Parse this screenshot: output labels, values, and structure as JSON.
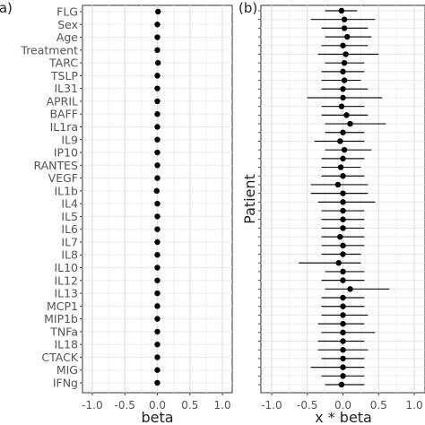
{
  "chart_data": [
    {
      "panel_label": "(a)",
      "type": "scatter",
      "title": "",
      "xlabel": "beta",
      "ylabel": "",
      "xlim": [
        -1.15,
        1.15
      ],
      "xticks": [
        "-1.0",
        "-0.5",
        "0.0",
        "0.5",
        "1.0"
      ],
      "grid": true,
      "categories": [
        "FLG",
        "Sex",
        "Age",
        "Treatment",
        "TARC",
        "TSLP",
        "IL31",
        "APRIL",
        "BAFF",
        "IL1ra",
        "IL9",
        "IP10",
        "RANTES",
        "VEGF",
        "IL1b",
        "IL4",
        "IL5",
        "IL6",
        "IL7",
        "IL8",
        "IL10",
        "IL12",
        "IL13",
        "MCP1",
        "MIP1b",
        "TNFa",
        "IL18",
        "CTACK",
        "MIG",
        "IFNg"
      ],
      "values": [
        0.01,
        0.0,
        0.0,
        0.0,
        0.01,
        0.0,
        0.0,
        0.0,
        0.0,
        0.0,
        0.0,
        0.0,
        0.0,
        0.0,
        -0.01,
        0.0,
        0.0,
        0.0,
        0.0,
        0.0,
        0.0,
        0.0,
        0.0,
        0.0,
        0.0,
        0.0,
        0.0,
        0.0,
        0.0,
        0.0
      ],
      "lower": [
        -0.02,
        -0.01,
        -0.01,
        -0.01,
        -0.02,
        -0.01,
        -0.01,
        -0.01,
        -0.01,
        -0.01,
        -0.01,
        -0.01,
        -0.01,
        -0.01,
        -0.04,
        -0.01,
        -0.01,
        -0.01,
        -0.01,
        -0.01,
        -0.01,
        -0.01,
        -0.01,
        -0.01,
        -0.01,
        -0.01,
        -0.01,
        -0.01,
        -0.01,
        -0.01
      ],
      "upper": [
        0.05,
        0.01,
        0.01,
        0.01,
        0.03,
        0.01,
        0.01,
        0.01,
        0.01,
        0.01,
        0.01,
        0.01,
        0.01,
        0.01,
        0.01,
        0.01,
        0.01,
        0.01,
        0.01,
        0.01,
        0.01,
        0.01,
        0.01,
        0.01,
        0.01,
        0.01,
        0.01,
        0.01,
        0.01,
        0.01
      ]
    },
    {
      "panel_label": "(b)",
      "type": "scatter",
      "title": "",
      "xlabel": "x * beta",
      "ylabel": "Patient",
      "xlim": [
        -1.15,
        1.15
      ],
      "xticks": [
        "-1.0",
        "-0.5",
        "0.0",
        "0.5",
        "1.0"
      ],
      "grid": true,
      "values": [
        -0.02,
        0.02,
        0.02,
        0.06,
        0.0,
        0.04,
        0.02,
        0.0,
        0.02,
        0.0,
        0.0,
        -0.02,
        0.05,
        0.1,
        0.0,
        -0.04,
        0.02,
        0.0,
        -0.03,
        0.0,
        -0.07,
        0.0,
        0.0,
        0.0,
        0.0,
        0.0,
        -0.04,
        0.0,
        0.0,
        -0.06,
        0.0,
        0.0,
        0.1,
        0.0,
        0.0,
        0.0,
        0.0,
        0.0,
        0.0,
        0.0,
        0.0,
        0.0,
        0.0,
        -0.02
      ],
      "lower": [
        -0.25,
        -0.45,
        -0.3,
        -0.25,
        -0.3,
        -0.35,
        -0.25,
        -0.3,
        -0.3,
        -0.3,
        -0.5,
        -0.3,
        -0.3,
        -0.25,
        -0.25,
        -0.4,
        -0.25,
        -0.3,
        -0.3,
        -0.3,
        -0.45,
        -0.45,
        -0.35,
        -0.3,
        -0.3,
        -0.3,
        -0.3,
        -0.3,
        -0.3,
        -0.62,
        -0.25,
        -0.3,
        -0.25,
        -0.3,
        -0.3,
        -0.3,
        -0.35,
        -0.3,
        -0.35,
        -0.35,
        -0.3,
        -0.45,
        -0.3,
        -0.25
      ],
      "upper": [
        0.2,
        0.45,
        0.35,
        0.4,
        0.35,
        0.5,
        0.3,
        0.3,
        0.25,
        0.35,
        0.55,
        0.3,
        0.35,
        0.6,
        0.3,
        0.3,
        0.4,
        0.3,
        0.25,
        0.3,
        0.35,
        0.35,
        0.45,
        0.3,
        0.3,
        0.3,
        0.3,
        0.3,
        0.25,
        0.25,
        0.3,
        0.3,
        0.65,
        0.3,
        0.3,
        0.35,
        0.3,
        0.45,
        0.3,
        0.35,
        0.3,
        0.3,
        0.3,
        0.3
      ]
    }
  ]
}
